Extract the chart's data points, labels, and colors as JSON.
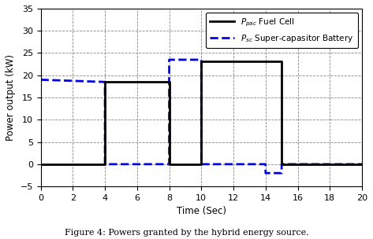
{
  "title": "Figure 4: Powers granted by the hybrid energy source.",
  "xlabel": "Time (Sec)",
  "ylabel": "Power output (kW)",
  "xlim": [
    0,
    20
  ],
  "ylim": [
    -5,
    35
  ],
  "xticks": [
    0,
    2,
    4,
    6,
    8,
    10,
    12,
    14,
    16,
    18,
    20
  ],
  "yticks": [
    -5,
    0,
    5,
    10,
    15,
    20,
    25,
    30,
    35
  ],
  "fuel_cell_x": [
    0,
    4,
    4,
    8,
    8,
    10,
    10,
    15,
    15,
    20
  ],
  "fuel_cell_y": [
    0,
    0,
    18.5,
    18.5,
    0,
    0,
    23.2,
    23.2,
    0,
    0
  ],
  "supercap_x": [
    0,
    4,
    4,
    8,
    8,
    10,
    10,
    14,
    14,
    15,
    15,
    20
  ],
  "supercap_y": [
    19.0,
    18.5,
    0.0,
    0.0,
    23.5,
    23.5,
    0.0,
    0.0,
    -2.0,
    -2.0,
    0.0,
    0.0
  ],
  "fuel_cell_color": "#000000",
  "supercap_color": "#0000EE",
  "fuel_cell_lw": 2.0,
  "supercap_lw": 2.0,
  "legend_fuel_label": "$P_{pac}$ Fuel Cell",
  "legend_sc_label": "$P_{sc}$ Super-capasitor Battery",
  "background_color": "#ffffff",
  "grid_color": "#888888"
}
